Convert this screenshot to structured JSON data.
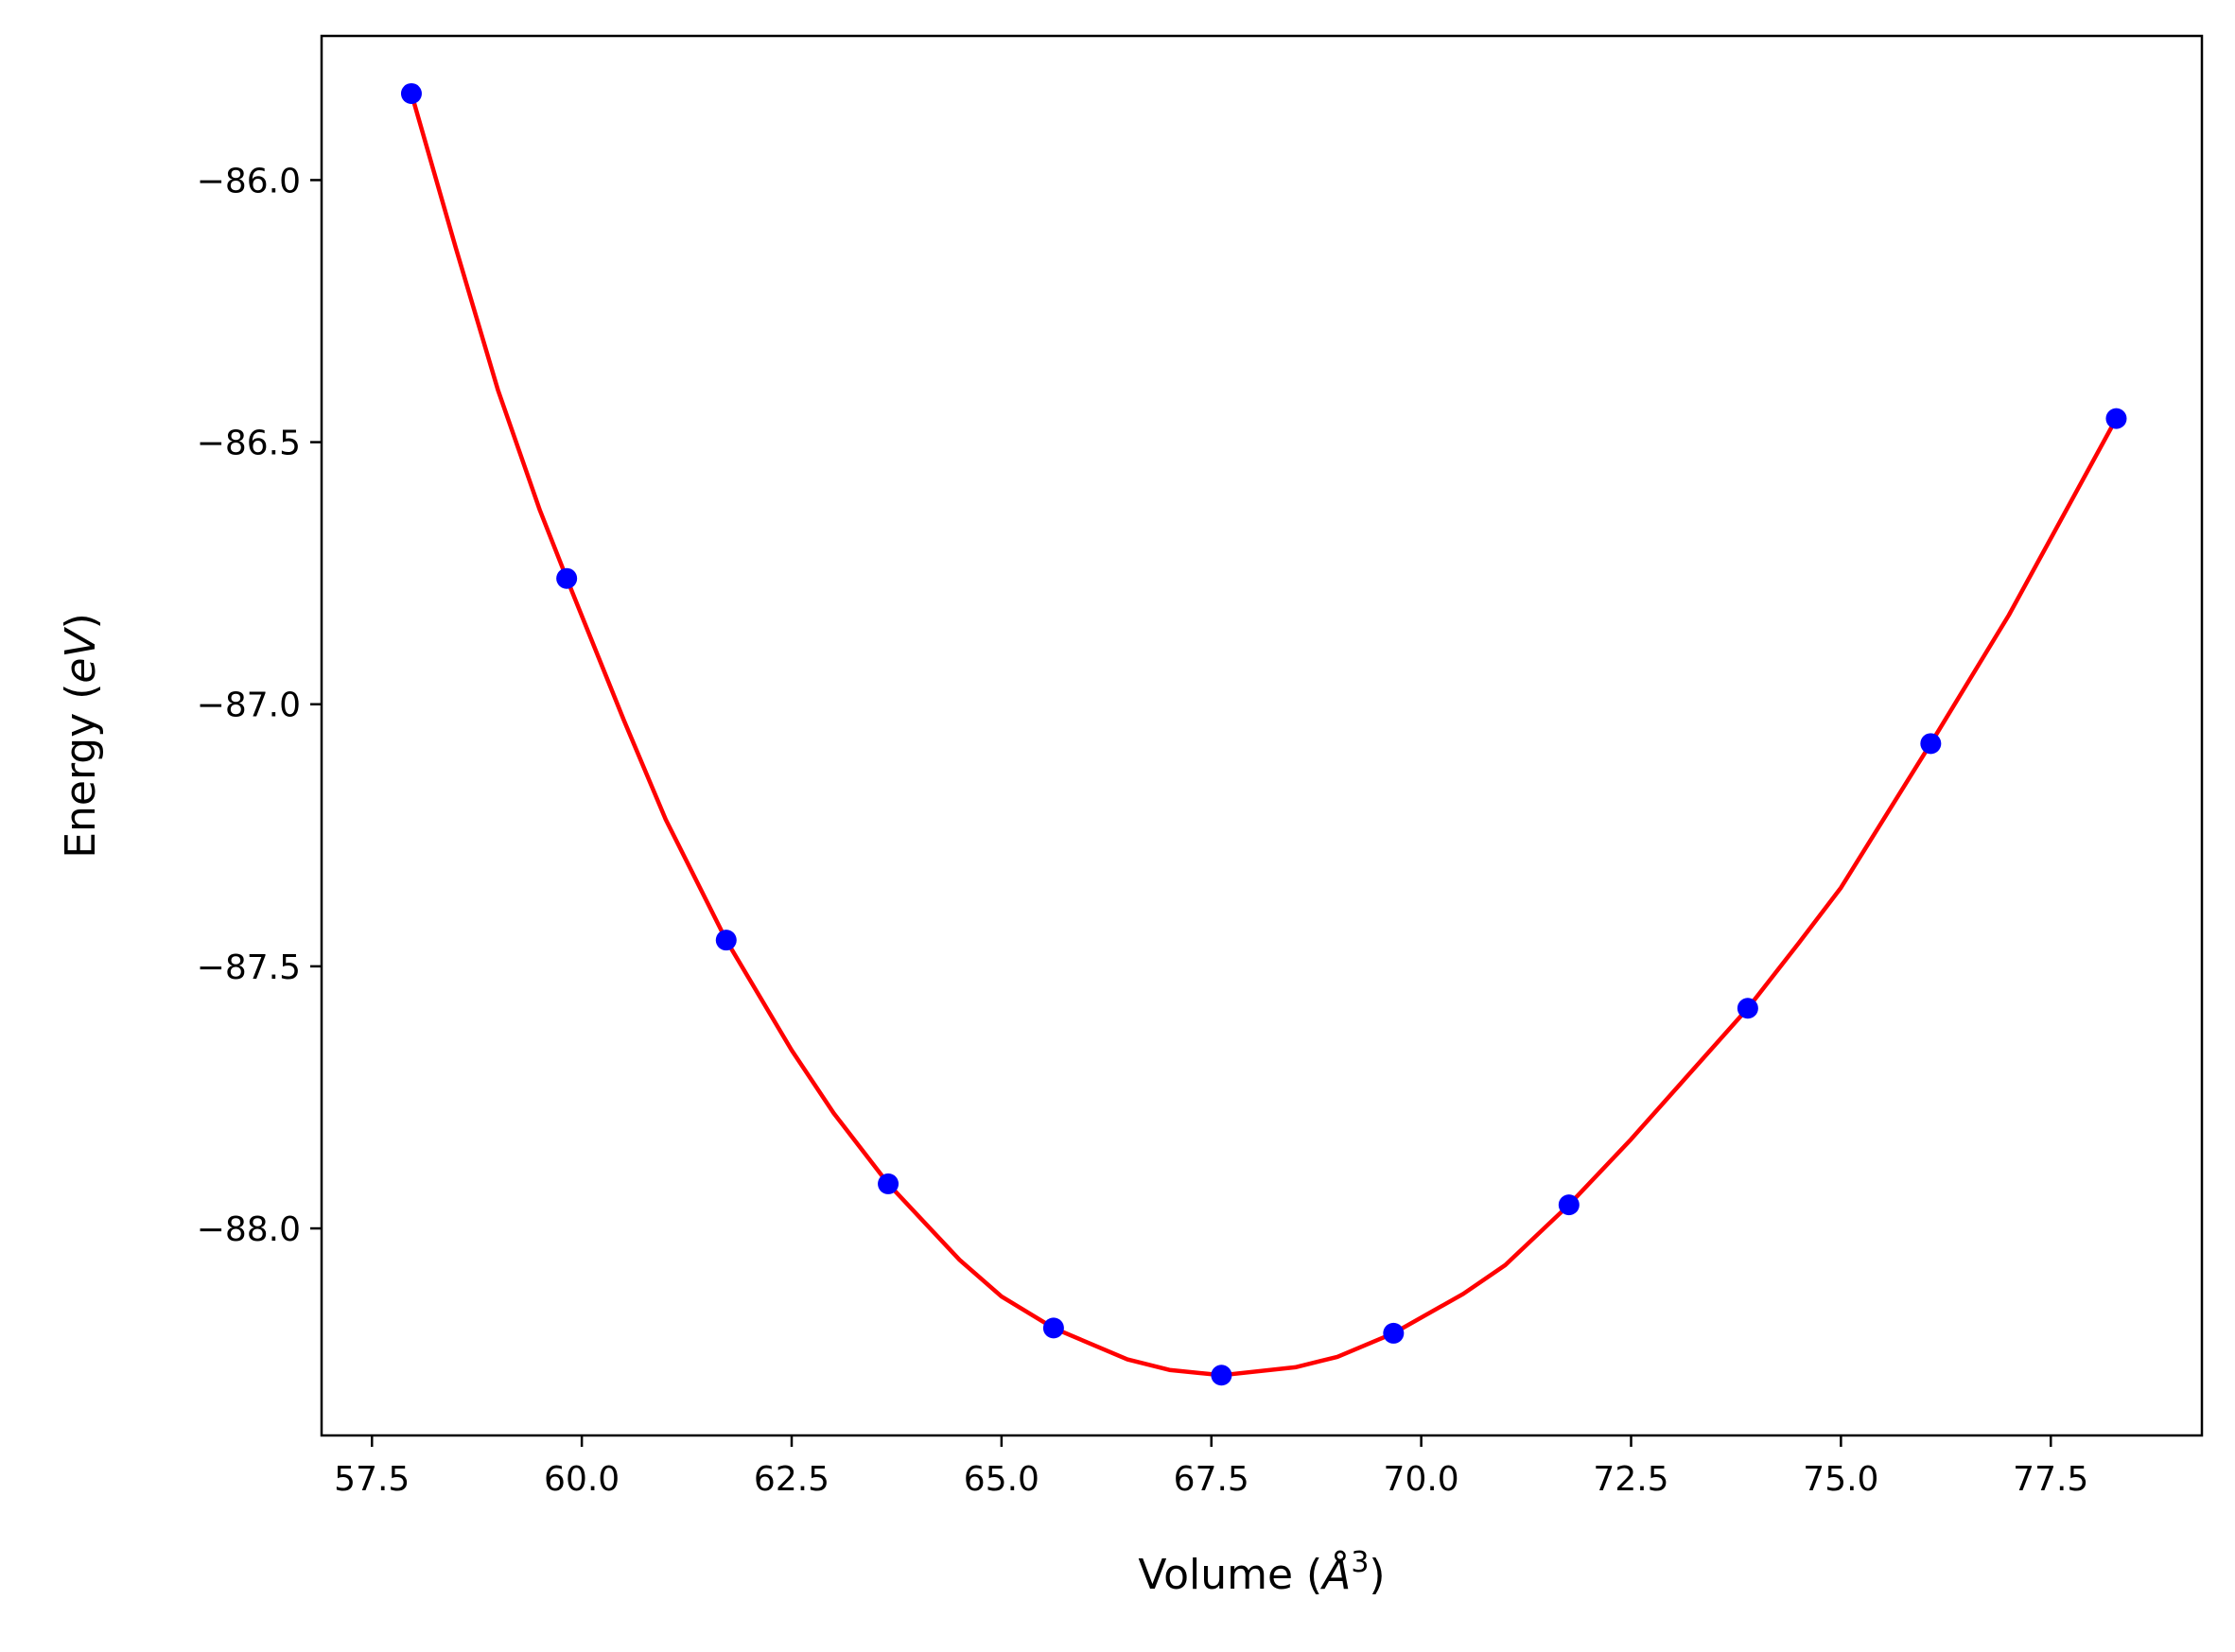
{
  "chart_data": {
    "type": "scatter",
    "title": "",
    "xlabel": "Volume (Å³)",
    "xlabel_parts": {
      "prefix": "Volume (",
      "symbol": "Å",
      "sup": "3",
      "suffix": ")"
    },
    "ylabel": "Energy (eV)",
    "ylabel_parts": {
      "prefix": "Energy (",
      "unit": "eV",
      "suffix": ")"
    },
    "xlim": [
      56.9,
      79.3
    ],
    "ylim": [
      -88.395,
      -85.725
    ],
    "grid": false,
    "legend": "none",
    "xticks": [
      57.5,
      60.0,
      62.5,
      65.0,
      67.5,
      70.0,
      72.5,
      75.0,
      77.5
    ],
    "xtick_labels": [
      "57.5",
      "60.0",
      "62.5",
      "65.0",
      "67.5",
      "70.0",
      "72.5",
      "75.0",
      "77.5"
    ],
    "yticks": [
      -86.0,
      -86.5,
      -87.0,
      -87.5,
      -88.0
    ],
    "ytick_labels": [
      "−86.0",
      "−86.5",
      "−87.0",
      "−87.5",
      "−88.0"
    ],
    "series": [
      {
        "kind": "points",
        "color": "#0000ff",
        "x": [
          57.97,
          59.82,
          61.72,
          63.65,
          65.62,
          67.62,
          69.67,
          71.76,
          73.89,
          76.07,
          78.28
        ],
        "y": [
          -85.835,
          -86.76,
          -87.45,
          -87.915,
          -88.19,
          -88.28,
          -88.2,
          -87.955,
          -87.58,
          -87.075,
          -86.455
        ]
      },
      {
        "kind": "fit-curve",
        "color": "#ff0000",
        "x": [
          57.97,
          58.5,
          59.0,
          59.5,
          59.82,
          60.5,
          61.0,
          61.72,
          62.5,
          63.0,
          63.65,
          64.5,
          65.0,
          65.62,
          66.5,
          67.0,
          67.62,
          68.5,
          69.0,
          69.67,
          70.5,
          71.0,
          71.76,
          72.5,
          73.0,
          73.89,
          74.5,
          75.0,
          76.07,
          77.0,
          78.28
        ],
        "y": [
          -85.835,
          -86.13,
          -86.4,
          -86.63,
          -86.76,
          -87.03,
          -87.22,
          -87.45,
          -87.66,
          -87.78,
          -87.915,
          -88.06,
          -88.13,
          -88.19,
          -88.25,
          -88.27,
          -88.28,
          -88.265,
          -88.245,
          -88.2,
          -88.125,
          -88.07,
          -87.955,
          -87.83,
          -87.74,
          -87.58,
          -87.455,
          -87.35,
          -87.075,
          -86.83,
          -86.455
        ]
      }
    ]
  }
}
